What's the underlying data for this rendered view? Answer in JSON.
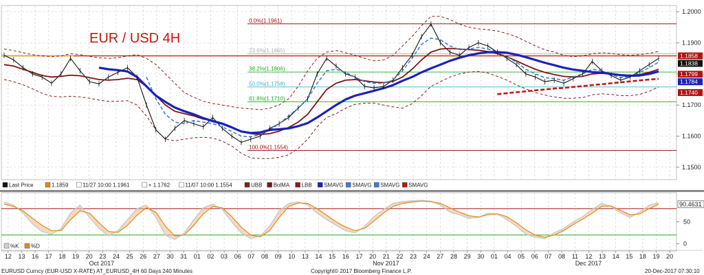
{
  "title": "EUR / USD 4H",
  "chart_data": [
    {
      "type": "line",
      "title": "EUR / USD 4H",
      "ylim": [
        1.146,
        1.202
      ],
      "y_ticks": [
        "1.2000",
        "1.1900",
        "1.1800",
        "1.1700",
        "1.1600",
        "1.1500"
      ],
      "x_day_labels": [
        "12",
        "13",
        "16",
        "17",
        "18",
        "19",
        "20",
        "23",
        "24",
        "25",
        "26",
        "27",
        "30",
        "31",
        "01",
        "02",
        "03",
        "06",
        "07",
        "08",
        "09",
        "10",
        "13",
        "14",
        "15",
        "16",
        "17",
        "20",
        "21",
        "22",
        "23",
        "24",
        "27",
        "28",
        "29",
        "30",
        "01",
        "04",
        "05",
        "06",
        "07",
        "08",
        "11",
        "12",
        "13",
        "14",
        "15",
        "18",
        "19",
        "20"
      ],
      "month_labels": [
        "Oct 2017",
        "Nov 2017",
        "Dec 2017"
      ],
      "fibonacci_levels": [
        {
          "label": "0.0%(1.1961)",
          "value": 1.1961
        },
        {
          "label": "23.6%(1.1865)",
          "value": 1.1865
        },
        {
          "label": "38.2%(1.1806)",
          "value": 1.1806
        },
        {
          "label": "50.0%(1.1758)",
          "value": 1.1758
        },
        {
          "label": "61.8%(1.1710)",
          "value": 1.171
        },
        {
          "label": "100.0%(1.1554)",
          "value": 1.1554
        }
      ],
      "horizontal_resistance": 1.1858,
      "price_tags": [
        {
          "value": "1.1858",
          "color": "#b01515"
        },
        {
          "value": "1.1838",
          "color": "#111111"
        },
        {
          "value": "1.1799",
          "color": "#b01515"
        },
        {
          "value": "1.1784",
          "color": "#1a22b8"
        },
        {
          "value": "1.1740",
          "color": "#b01515"
        }
      ],
      "legend": [
        {
          "swatch": "#111111",
          "label": "Last Price"
        },
        {
          "swatch": "#e08a1a",
          "label": "1.1859"
        },
        {
          "swatch": "#ffffff",
          "label": "11/27 10:00 1.1961"
        },
        {
          "swatch": "#ffffff",
          "label": "+ 1.1762"
        },
        {
          "swatch": "#ffffff",
          "label": "11/07 10:00 1.1554"
        },
        {
          "swatch": "#8b1a1a",
          "label": "UBB"
        },
        {
          "swatch": "#7a1515",
          "label": "BolMA"
        },
        {
          "swatch": "#8b1a1a",
          "label": "LBB"
        },
        {
          "swatch": "#1a22b8",
          "label": "SMAVG"
        },
        {
          "swatch": "#3a7fd0",
          "label": "SMAVG"
        },
        {
          "swatch": "#3a7fd0",
          "label": "SMAVG"
        },
        {
          "swatch": "#c01515",
          "label": "SMAVG"
        }
      ],
      "series": [
        {
          "name": "Last Price",
          "values": [
            1.186,
            1.1845,
            1.182,
            1.18,
            1.179,
            1.177,
            1.18,
            1.185,
            1.181,
            1.1775,
            1.1768,
            1.179,
            1.1805,
            1.182,
            1.179,
            1.17,
            1.162,
            1.159,
            1.1625,
            1.165,
            1.164,
            1.163,
            1.166,
            1.1625,
            1.16,
            1.158,
            1.159,
            1.16,
            1.1625,
            1.164,
            1.166,
            1.169,
            1.172,
            1.18,
            1.185,
            1.1825,
            1.18,
            1.179,
            1.176,
            1.1755,
            1.176,
            1.178,
            1.182,
            1.186,
            1.192,
            1.196,
            1.19,
            1.187,
            1.186,
            1.1885,
            1.19,
            1.189,
            1.187,
            1.185,
            1.183,
            1.18,
            1.179,
            1.1775,
            1.178,
            1.177,
            1.1785,
            1.18,
            1.184,
            1.181,
            1.1795,
            1.178,
            1.179,
            1.181,
            1.183,
            1.185
          ]
        },
        {
          "name": "BolMA",
          "values": [
            1.183,
            1.1825,
            1.1815,
            1.1805,
            1.1795,
            1.179,
            1.1792,
            1.1796,
            1.1794,
            1.1788,
            1.1782,
            1.178,
            1.1782,
            1.1786,
            1.1782,
            1.176,
            1.173,
            1.17,
            1.168,
            1.1672,
            1.1665,
            1.1655,
            1.165,
            1.1642,
            1.163,
            1.1615,
            1.1608,
            1.1605,
            1.1608,
            1.1616,
            1.1628,
            1.1645,
            1.167,
            1.171,
            1.175,
            1.177,
            1.178,
            1.1782,
            1.1778,
            1.1774,
            1.1772,
            1.1776,
            1.179,
            1.1815,
            1.1845,
            1.187,
            1.188,
            1.1882,
            1.188,
            1.1878,
            1.1876,
            1.1872,
            1.1865,
            1.1855,
            1.1842,
            1.1828,
            1.1815,
            1.1805,
            1.1798,
            1.1792,
            1.179,
            1.1792,
            1.18,
            1.1802,
            1.18,
            1.1796,
            1.1795,
            1.1798,
            1.1805,
            1.1815
          ]
        },
        {
          "name": "UBB",
          "values": [
            1.188,
            1.1875,
            1.1868,
            1.1862,
            1.1858,
            1.1855,
            1.1858,
            1.1865,
            1.1862,
            1.1856,
            1.1852,
            1.185,
            1.1852,
            1.1858,
            1.1862,
            1.185,
            1.183,
            1.18,
            1.177,
            1.174,
            1.1725,
            1.1712,
            1.1705,
            1.17,
            1.1695,
            1.169,
            1.1688,
            1.1685,
            1.169,
            1.17,
            1.172,
            1.176,
            1.181,
            1.185,
            1.187,
            1.1875,
            1.1868,
            1.186,
            1.185,
            1.1842,
            1.1845,
            1.186,
            1.189,
            1.192,
            1.1955,
            1.1985,
            1.1985,
            1.1975,
            1.196,
            1.195,
            1.1945,
            1.1942,
            1.1938,
            1.193,
            1.192,
            1.1905,
            1.189,
            1.1878,
            1.187,
            1.186,
            1.1855,
            1.1858,
            1.1865,
            1.1868,
            1.1866,
            1.1862,
            1.186,
            1.1862,
            1.1866,
            1.1872
          ]
        },
        {
          "name": "LBB",
          "values": [
            1.1782,
            1.1775,
            1.1765,
            1.1752,
            1.1738,
            1.1728,
            1.1726,
            1.1728,
            1.1726,
            1.1722,
            1.1716,
            1.1712,
            1.1712,
            1.1714,
            1.17,
            1.1665,
            1.162,
            1.159,
            1.1585,
            1.159,
            1.1595,
            1.1596,
            1.1594,
            1.1584,
            1.1568,
            1.1545,
            1.153,
            1.1528,
            1.1528,
            1.1532,
            1.154,
            1.156,
            1.159,
            1.163,
            1.166,
            1.1672,
            1.169,
            1.1702,
            1.1706,
            1.1706,
            1.17,
            1.1694,
            1.169,
            1.1704,
            1.173,
            1.176,
            1.1775,
            1.179,
            1.18,
            1.1806,
            1.1808,
            1.1803,
            1.1792,
            1.178,
            1.1765,
            1.1752,
            1.174,
            1.1732,
            1.1726,
            1.1722,
            1.1722,
            1.1724,
            1.1733,
            1.1736,
            1.1734,
            1.173,
            1.173,
            1.1734,
            1.1744,
            1.1758
          ]
        },
        {
          "name": "SMAVG",
          "values": [
            null,
            null,
            null,
            null,
            null,
            null,
            null,
            null,
            null,
            null,
            1.182,
            1.1815,
            1.1812,
            1.1808,
            1.179,
            1.176,
            1.173,
            1.171,
            1.1692,
            1.168,
            1.167,
            1.1658,
            1.1648,
            1.164,
            1.1628,
            1.1615,
            1.161,
            1.1612,
            1.162,
            1.1622,
            1.1625,
            1.1632,
            1.1642,
            1.166,
            1.168,
            1.17,
            1.1718,
            1.173,
            1.1738,
            1.1746,
            1.1754,
            1.1764,
            1.1778,
            1.179,
            1.1805,
            1.1818,
            1.183,
            1.1842,
            1.1852,
            1.186,
            1.1866,
            1.187,
            1.187,
            1.1868,
            1.1862,
            1.1854,
            1.1845,
            1.1836,
            1.1828,
            1.182,
            1.1814,
            1.181,
            1.1806,
            1.1804,
            1.18,
            1.1796,
            1.1794,
            1.1795,
            1.18,
            1.1808
          ]
        },
        {
          "name": "SMAVG",
          "values": [
            null,
            null,
            null,
            null,
            null,
            null,
            null,
            null,
            null,
            null,
            null,
            null,
            null,
            null,
            null,
            1.179,
            1.172,
            1.167,
            1.1645,
            1.164,
            1.165,
            1.1645,
            1.164,
            1.163,
            1.1615,
            1.16,
            1.1598,
            1.1605,
            1.162,
            1.164,
            1.1665,
            1.169,
            1.172,
            1.177,
            1.181,
            1.1815,
            1.1805,
            1.179,
            1.1775,
            1.177,
            1.177,
            1.178,
            1.181,
            1.185,
            1.1895,
            1.1915,
            1.191,
            1.189,
            1.1878,
            1.188,
            1.1885,
            1.188,
            1.187,
            1.1855,
            1.1838,
            1.1815,
            1.18,
            1.1788,
            1.1785,
            1.178,
            1.179,
            1.18,
            1.1815,
            1.181,
            1.1798,
            1.1788,
            1.1792,
            1.1805,
            1.182,
            1.1838
          ]
        },
        {
          "name": "SMAVG",
          "values": [
            null,
            null,
            null,
            null,
            null,
            null,
            null,
            null,
            null,
            null,
            null,
            null,
            null,
            null,
            null,
            null,
            null,
            null,
            null,
            null,
            null,
            null,
            null,
            null,
            null,
            null,
            null,
            null,
            null,
            null,
            null,
            null,
            null,
            null,
            null,
            null,
            null,
            null,
            null,
            null,
            null,
            null,
            null,
            null,
            null,
            null,
            null,
            null,
            null,
            null,
            null,
            null,
            1.1735,
            1.1738,
            1.1741,
            1.1744,
            1.1747,
            1.175,
            1.1753,
            1.1755,
            1.1758,
            1.1761,
            1.1764,
            1.1767,
            1.177,
            1.1773,
            1.1776,
            1.1779,
            1.1782,
            1.1784
          ]
        }
      ]
    },
    {
      "type": "line",
      "title": "",
      "ylim": [
        -10,
        110
      ],
      "y_ticks": [
        "50",
        "0"
      ],
      "reference_lines": [
        80,
        20
      ],
      "current_value": "90.4631",
      "legend": [
        {
          "swatch": "#cfcfcf",
          "label": "%K"
        },
        {
          "swatch": "#e08a1a",
          "label": "%D"
        }
      ],
      "series": [
        {
          "name": "%K",
          "values": [
            95,
            88,
            70,
            45,
            28,
            22,
            35,
            70,
            88,
            60,
            35,
            18,
            30,
            55,
            80,
            88,
            60,
            20,
            10,
            25,
            55,
            82,
            90,
            78,
            50,
            25,
            12,
            18,
            40,
            75,
            92,
            95,
            88,
            70,
            55,
            42,
            30,
            25,
            40,
            62,
            78,
            92,
            96,
            98,
            99,
            97,
            88,
            72,
            66,
            58,
            60,
            70,
            68,
            55,
            40,
            22,
            15,
            12,
            25,
            35,
            50,
            62,
            78,
            92,
            85,
            70,
            60,
            72,
            88,
            94
          ]
        },
        {
          "name": "%D",
          "values": [
            90,
            85,
            75,
            58,
            42,
            30,
            30,
            55,
            75,
            70,
            48,
            28,
            26,
            42,
            65,
            82,
            72,
            40,
            18,
            20,
            42,
            68,
            85,
            82,
            62,
            38,
            20,
            16,
            30,
            60,
            85,
            93,
            92,
            80,
            65,
            50,
            38,
            30,
            35,
            52,
            70,
            85,
            92,
            95,
            97,
            96,
            92,
            82,
            72,
            64,
            61,
            66,
            68,
            62,
            48,
            32,
            20,
            15,
            20,
            30,
            44,
            56,
            70,
            85,
            86,
            76,
            66,
            68,
            80,
            90
          ]
        }
      ]
    }
  ],
  "footer": {
    "left": "EURUSD Curncy (EUR-USD X-RATE) AT_EURUSD_4H 60 Days 240 Minutes",
    "center": "Copyright© 2017 Bloomberg Finance L.P.",
    "right": "20-Dec-2017 07:30:10"
  }
}
